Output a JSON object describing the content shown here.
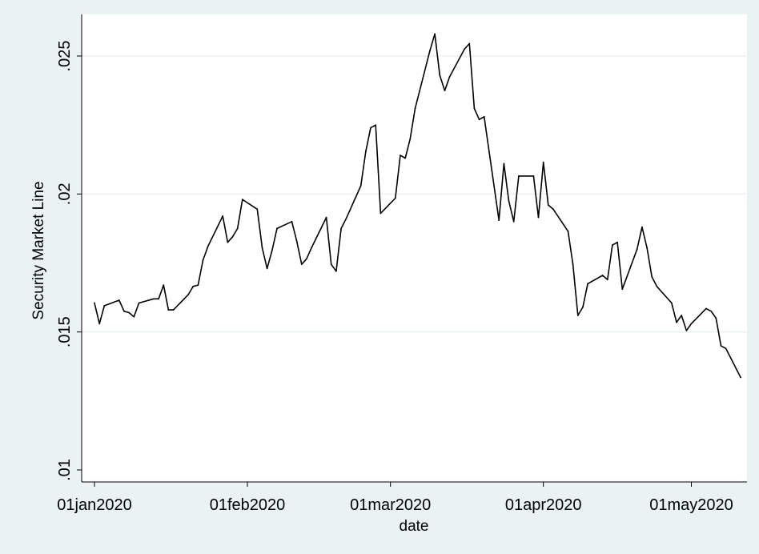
{
  "colors": {
    "outer_background": "#eaf2f3",
    "plot_background": "#ffffff",
    "gridline": "#eaf2f3",
    "series_line": "#000000",
    "axis": "#000000"
  },
  "chart_data": {
    "type": "line",
    "title": "",
    "xlabel": "date",
    "ylabel": "Security Market Line",
    "x_axis_type": "date",
    "xlim": [
      "2020-01-01",
      "2020-05-12"
    ],
    "ylim": [
      0.01,
      0.026
    ],
    "grid": true,
    "legend": "none",
    "x_ticks": [
      {
        "date": "2020-01-01",
        "label": "01jan2020"
      },
      {
        "date": "2020-02-01",
        "label": "01feb2020"
      },
      {
        "date": "2020-03-01",
        "label": "01mar2020"
      },
      {
        "date": "2020-04-01",
        "label": "01apr2020"
      },
      {
        "date": "2020-05-01",
        "label": "01may2020"
      }
    ],
    "y_ticks": [
      {
        "value": 0.01,
        "label": ".01"
      },
      {
        "value": 0.015,
        "label": ".015"
      },
      {
        "value": 0.02,
        "label": ".02"
      },
      {
        "value": 0.025,
        "label": ".025"
      }
    ],
    "series": [
      {
        "x": [
          "2020-01-01",
          "2020-01-02",
          "2020-01-03",
          "2020-01-06",
          "2020-01-07",
          "2020-01-08",
          "2020-01-09",
          "2020-01-10",
          "2020-01-13",
          "2020-01-14",
          "2020-01-15",
          "2020-01-16",
          "2020-01-17",
          "2020-01-20",
          "2020-01-21",
          "2020-01-22",
          "2020-01-23",
          "2020-01-24",
          "2020-01-27",
          "2020-01-28",
          "2020-01-29",
          "2020-01-30",
          "2020-01-31",
          "2020-02-03",
          "2020-02-04",
          "2020-02-05",
          "2020-02-06",
          "2020-02-07",
          "2020-02-10",
          "2020-02-11",
          "2020-02-12",
          "2020-02-13",
          "2020-02-14",
          "2020-02-17",
          "2020-02-18",
          "2020-02-19",
          "2020-02-20",
          "2020-02-21",
          "2020-02-24",
          "2020-02-25",
          "2020-02-26",
          "2020-02-27",
          "2020-02-28",
          "2020-03-02",
          "2020-03-03",
          "2020-03-04",
          "2020-03-05",
          "2020-03-06",
          "2020-03-09",
          "2020-03-10",
          "2020-03-11",
          "2020-03-12",
          "2020-03-13",
          "2020-03-16",
          "2020-03-17",
          "2020-03-18",
          "2020-03-19",
          "2020-03-20",
          "2020-03-23",
          "2020-03-24",
          "2020-03-25",
          "2020-03-26",
          "2020-03-27",
          "2020-03-30",
          "2020-03-31",
          "2020-04-01",
          "2020-04-02",
          "2020-04-03",
          "2020-04-06",
          "2020-04-07",
          "2020-04-08",
          "2020-04-09",
          "2020-04-10",
          "2020-04-13",
          "2020-04-14",
          "2020-04-15",
          "2020-04-16",
          "2020-04-17",
          "2020-04-20",
          "2020-04-21",
          "2020-04-22",
          "2020-04-23",
          "2020-04-24",
          "2020-04-27",
          "2020-04-28",
          "2020-04-29",
          "2020-04-30",
          "2020-05-01",
          "2020-05-04",
          "2020-05-05",
          "2020-05-06",
          "2020-05-07",
          "2020-05-08",
          "2020-05-11"
        ],
        "values": [
          0.01605,
          0.0153,
          0.01595,
          0.01615,
          0.01575,
          0.0157,
          0.01555,
          0.01605,
          0.0162,
          0.0162,
          0.0167,
          0.0158,
          0.0158,
          0.01635,
          0.01665,
          0.0167,
          0.0176,
          0.0181,
          0.0192,
          0.01825,
          0.01845,
          0.01875,
          0.0198,
          0.01945,
          0.01805,
          0.0173,
          0.01795,
          0.01875,
          0.019,
          0.0183,
          0.01745,
          0.01765,
          0.01805,
          0.01915,
          0.01745,
          0.0172,
          0.01875,
          0.0191,
          0.0203,
          0.02155,
          0.0224,
          0.0225,
          0.0193,
          0.01985,
          0.0214,
          0.0213,
          0.022,
          0.0231,
          0.0252,
          0.0258,
          0.0243,
          0.02375,
          0.02425,
          0.02525,
          0.02545,
          0.0231,
          0.0227,
          0.0228,
          0.01905,
          0.0211,
          0.01975,
          0.019,
          0.02065,
          0.02065,
          0.01915,
          0.02115,
          0.0196,
          0.01945,
          0.01865,
          0.01745,
          0.0156,
          0.0159,
          0.01675,
          0.01705,
          0.0169,
          0.01815,
          0.01825,
          0.01655,
          0.018,
          0.0188,
          0.01805,
          0.017,
          0.01665,
          0.01605,
          0.01535,
          0.0156,
          0.01505,
          0.0153,
          0.01585,
          0.01575,
          0.0155,
          0.0145,
          0.0144,
          0.01335
        ]
      }
    ]
  }
}
